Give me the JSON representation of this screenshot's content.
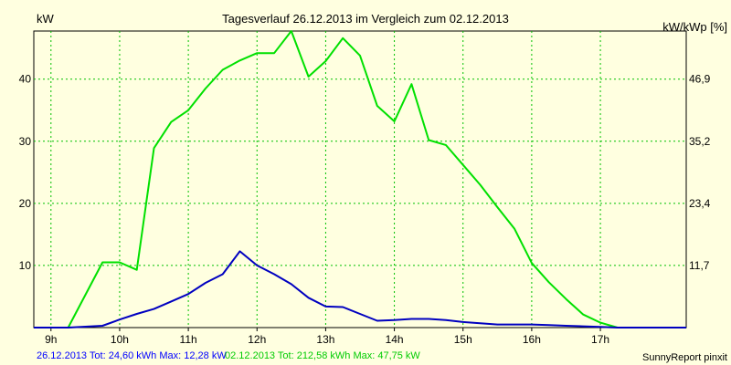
{
  "chart_data": {
    "type": "line",
    "title": "Tagesverlauf 26.12.2013 im Vergleich zum 02.12.2013",
    "ylabel_left": "kW",
    "ylabel_right": "kW/kWp [%]",
    "x_ticks": [
      "9h",
      "10h",
      "11h",
      "12h",
      "13h",
      "14h",
      "15h",
      "16h",
      "17h"
    ],
    "x_tick_hours": [
      9,
      10,
      11,
      12,
      13,
      14,
      15,
      16,
      17
    ],
    "xlim": [
      8.75,
      18.25
    ],
    "ylim": [
      0,
      47.75
    ],
    "y_ticks_left": [
      10,
      20,
      30,
      40
    ],
    "y_ticks_right": [
      {
        "value": 10,
        "label": "11,7"
      },
      {
        "value": 20,
        "label": "23,4"
      },
      {
        "value": 30,
        "label": "35,2"
      },
      {
        "value": 40,
        "label": "46,9"
      }
    ],
    "grid": true,
    "series": [
      {
        "color": "#00e000",
        "x": [
          8.75,
          9.25,
          9.75,
          10.0,
          10.25,
          10.5,
          10.75,
          11.0,
          11.25,
          11.5,
          11.75,
          12.0,
          12.25,
          12.5,
          12.75,
          13.0,
          13.25,
          13.5,
          13.75,
          14.0,
          14.25,
          14.5,
          14.75,
          15.0,
          15.25,
          15.5,
          15.75,
          16.0,
          16.25,
          16.5,
          16.75,
          17.0,
          17.25,
          17.5,
          18.25
        ],
        "y": [
          0,
          0,
          10.5,
          10.5,
          9.3,
          28.9,
          33.1,
          35.0,
          38.5,
          41.5,
          43.0,
          44.2,
          44.2,
          47.75,
          40.4,
          42.9,
          46.6,
          43.8,
          35.7,
          33.2,
          39.2,
          30.2,
          29.4,
          26.2,
          23.0,
          19.4,
          15.9,
          10.4,
          7.3,
          4.6,
          2.1,
          0.8,
          0,
          0,
          0
        ]
      },
      {
        "color": "#0000c0",
        "x": [
          8.75,
          9.25,
          9.75,
          10.0,
          10.25,
          10.5,
          10.75,
          11.0,
          11.25,
          11.5,
          11.75,
          12.0,
          12.25,
          12.5,
          12.75,
          13.0,
          13.25,
          13.5,
          13.75,
          14.0,
          14.25,
          14.5,
          14.75,
          15.0,
          15.25,
          15.5,
          15.75,
          16.0,
          16.25,
          16.5,
          16.75,
          17.0,
          17.25,
          17.5,
          18.25
        ],
        "y": [
          0,
          0,
          0.3,
          1.3,
          2.2,
          3.0,
          4.2,
          5.4,
          7.2,
          8.6,
          12.28,
          10.0,
          8.6,
          7.0,
          4.8,
          3.4,
          3.3,
          2.2,
          1.1,
          1.2,
          1.4,
          1.4,
          1.2,
          0.9,
          0.7,
          0.5,
          0.5,
          0.5,
          0.4,
          0.3,
          0.2,
          0.1,
          0,
          0,
          0
        ]
      }
    ]
  },
  "footer": {
    "series1_text": "26.12.2013 Tot: 24,60 kWh Max: 12,28 kW",
    "series2_text": "02.12.2013 Tot: 212,58 kWh Max: 47,75 kW",
    "credit": "SunnyReport pinxit"
  }
}
